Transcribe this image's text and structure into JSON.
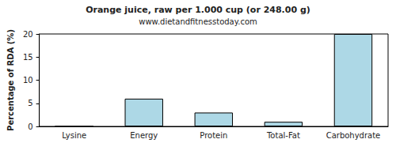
{
  "chart_data": {
    "type": "bar",
    "title": "Orange juice, raw per 1.000 cup (or 248.00 g)",
    "subtitle": "www.dietandfitnesstoday.com",
    "y_label": "Percentage of RDA (%)",
    "categories": [
      "Lysine",
      "Energy",
      "Protein",
      "Total-Fat",
      "Carbohydrate"
    ],
    "values": [
      0,
      6,
      3,
      1,
      20
    ],
    "color": "#add8e6",
    "ylim": [
      0,
      20
    ],
    "yticks": [
      0,
      5,
      10,
      15,
      20
    ],
    "grid": false
  }
}
